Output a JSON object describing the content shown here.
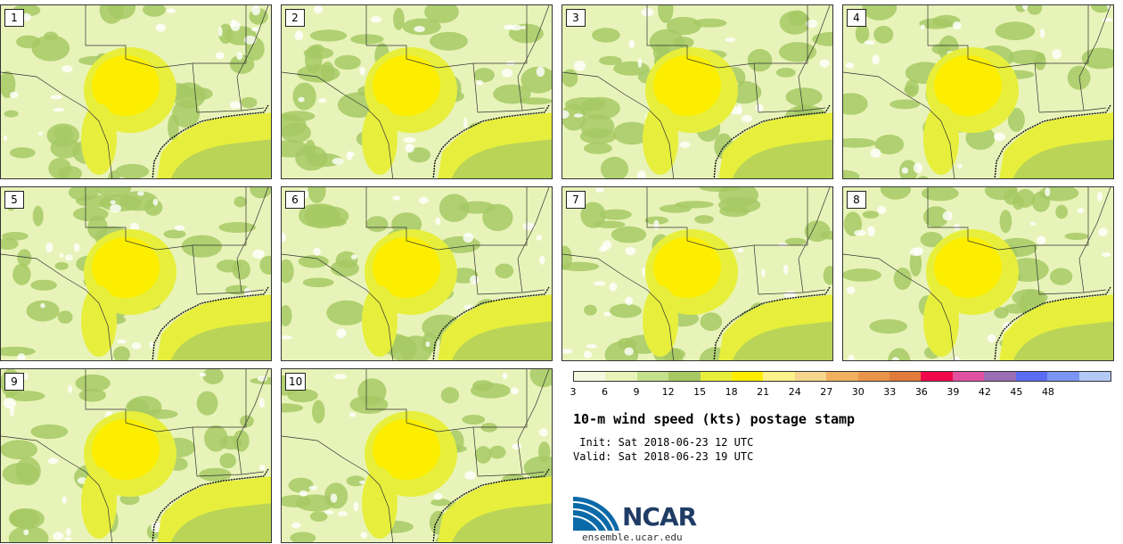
{
  "title": "10-m wind speed (kts) postage stamp",
  "init_line": " Init: Sat 2018-06-23 12 UTC",
  "valid_line": "Valid: Sat 2018-06-23 19 UTC",
  "logo_text": "NCAR",
  "site": "ensemble.ucar.edu",
  "members": [
    "1",
    "2",
    "3",
    "4",
    "5",
    "6",
    "7",
    "8",
    "9",
    "10"
  ],
  "colorbar": {
    "ticks": [
      "3",
      "6",
      "9",
      "12",
      "15",
      "18",
      "21",
      "24",
      "27",
      "30",
      "33",
      "36",
      "39",
      "42",
      "45",
      "48"
    ],
    "colors": [
      "#f5f8df",
      "#e8f3b9",
      "#c5e08a",
      "#a6c964",
      "#e7ef3c",
      "#fdee00",
      "#fdf18a",
      "#f5d68c",
      "#f0b060",
      "#e8954a",
      "#e07b3c",
      "#f0084a",
      "#e052a0",
      "#9b6db5",
      "#5a6cf2",
      "#7a95f4",
      "#b3c9f6"
    ]
  },
  "colors": {
    "land_low": "#e8f3b9",
    "land_mid": "#a6c964",
    "high": "#fdee00",
    "mid": "#e7ef3c",
    "ncar_blue": "#0a6aa8",
    "ncar_text": "#1f3c66"
  }
}
